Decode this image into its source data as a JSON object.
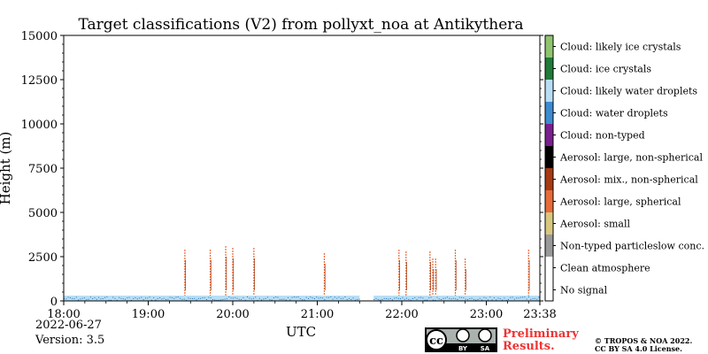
{
  "chart_data": {
    "type": "heatmap",
    "title": "Target classifications (V2) from pollyxt_noa at Antikythera",
    "xlabel": "UTC",
    "ylabel": "Height (m)",
    "x_range": [
      "18:00",
      "23:38"
    ],
    "ylim": [
      0,
      15000
    ],
    "x_ticks": [
      "18:00",
      "19:00",
      "20:00",
      "21:00",
      "22:00",
      "23:00",
      "23:38"
    ],
    "y_ticks": [
      0,
      2500,
      5000,
      7500,
      10000,
      12500,
      15000
    ],
    "y_tick_labels": [
      "0",
      "2500",
      "5000",
      "7500",
      "10000",
      "12500",
      "15000"
    ],
    "grid": false,
    "legend_position": "right colorbar",
    "classes": [
      {
        "label": "No signal",
        "color": "#ffffff"
      },
      {
        "label": "Clean atmosphere",
        "color": "#ffffff"
      },
      {
        "label": "Non-typed particleslow conc.",
        "color": "#999999"
      },
      {
        "label": "Aerosol: small",
        "color": "#d8c77f"
      },
      {
        "label": "Aerosol: large, spherical",
        "color": "#e86b3a"
      },
      {
        "label": "Aerosol: mix., non-spherical",
        "color": "#a63a12"
      },
      {
        "label": "Aerosol: large, non-spherical",
        "color": "#000000"
      },
      {
        "label": "Cloud: non-typed",
        "color": "#7a1f8e"
      },
      {
        "label": "Cloud: water droplets",
        "color": "#3d8bd0"
      },
      {
        "label": "Cloud: likely water droplets",
        "color": "#b8def5"
      },
      {
        "label": "Cloud: ice crystals",
        "color": "#207a3a"
      },
      {
        "label": "Cloud: likely ice crystals",
        "color": "#8fc46f"
      }
    ],
    "boundary_layer_segments": [
      {
        "start": "18:00",
        "end": "21:30",
        "top_m": 300,
        "class": "Cloud: likely water droplets"
      },
      {
        "start": "21:40",
        "end": "23:38",
        "top_m": 300,
        "class": "Cloud: likely water droplets"
      }
    ],
    "plumes": [
      {
        "time": "19:26",
        "top_m": 2900,
        "class": "Aerosol: large, spherical"
      },
      {
        "time": "19:44",
        "top_m": 2900,
        "class": "Aerosol: large, spherical"
      },
      {
        "time": "19:55",
        "top_m": 3100,
        "class": "Aerosol: large, spherical"
      },
      {
        "time": "20:00",
        "top_m": 3000,
        "class": "Aerosol: large, spherical"
      },
      {
        "time": "20:15",
        "top_m": 3000,
        "class": "Aerosol: large, spherical"
      },
      {
        "time": "21:05",
        "top_m": 2700,
        "class": "Aerosol: large, spherical"
      },
      {
        "time": "21:58",
        "top_m": 2900,
        "class": "Aerosol: large, spherical"
      },
      {
        "time": "22:03",
        "top_m": 2800,
        "class": "Aerosol: large, spherical"
      },
      {
        "time": "22:20",
        "top_m": 2800,
        "class": "Aerosol: large, spherical"
      },
      {
        "time": "22:22",
        "top_m": 2400,
        "class": "Aerosol: large, spherical"
      },
      {
        "time": "22:24",
        "top_m": 2400,
        "class": "Aerosol: large, spherical"
      },
      {
        "time": "22:38",
        "top_m": 2900,
        "class": "Aerosol: large, spherical"
      },
      {
        "time": "22:45",
        "top_m": 2400,
        "class": "Aerosol: large, spherical"
      },
      {
        "time": "23:30",
        "top_m": 2900,
        "class": "Aerosol: large, spherical"
      }
    ]
  },
  "footer": {
    "date": "2022-06-27",
    "version": "Version: 3.5",
    "prelim_line1": "Preliminary",
    "prelim_line2": "Results.",
    "copyright_line1": "© TROPOS & NOA 2022.",
    "copyright_line2": "CC BY SA 4.0 License.",
    "license_badge": {
      "cc": "cc",
      "by": "BY",
      "sa": "SA"
    }
  }
}
